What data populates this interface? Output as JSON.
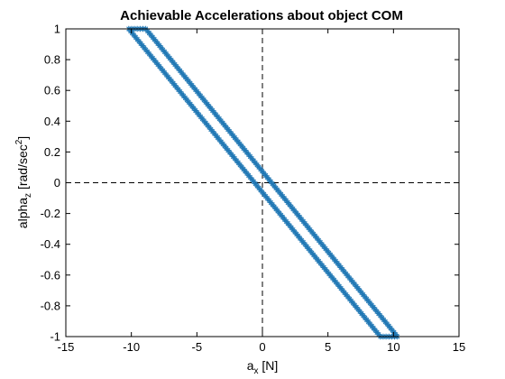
{
  "chart_data": {
    "type": "scatter",
    "title": "Achievable Accelerations about object COM",
    "xlabel": {
      "base": "a",
      "sub": "x",
      "rest": " [N]"
    },
    "ylabel": {
      "base": "alpha",
      "sub": "z",
      "rest": "  [rad/sec",
      "sup": "2",
      "end": "]"
    },
    "xlim": [
      -15,
      15
    ],
    "ylim": [
      -1,
      1
    ],
    "xticks": [
      -15,
      -10,
      -5,
      0,
      5,
      10,
      15
    ],
    "xtick_labels": [
      "-15",
      "-10",
      "-5",
      "0",
      "5",
      "10",
      "15"
    ],
    "yticks": [
      -1,
      -0.8,
      -0.6,
      -0.4,
      -0.2,
      0,
      0.2,
      0.4,
      0.6,
      0.8,
      1
    ],
    "ytick_labels": [
      "-1",
      "-0.8",
      "-0.6",
      "-0.4",
      "-0.2",
      "0",
      "0.2",
      "0.4",
      "0.6",
      "0.8",
      "1"
    ],
    "grid": false,
    "reference_lines": {
      "horizontal_y": 0,
      "vertical_x": 0,
      "style": "dashed",
      "color": "#000000"
    },
    "series": [
      {
        "marker": "asterisk",
        "color": "#1f77b4",
        "polygon_vertices": [
          {
            "x": -10.2,
            "y": 1.0
          },
          {
            "x": -8.9,
            "y": 1.0
          },
          {
            "x": 10.3,
            "y": -1.0
          },
          {
            "x": 9.0,
            "y": -1.0
          }
        ],
        "zero_crossings": {
          "x_at_y0": [
            -1.45,
            1.45
          ],
          "y_at_x0": [
            -0.15,
            0.15
          ]
        }
      }
    ]
  }
}
